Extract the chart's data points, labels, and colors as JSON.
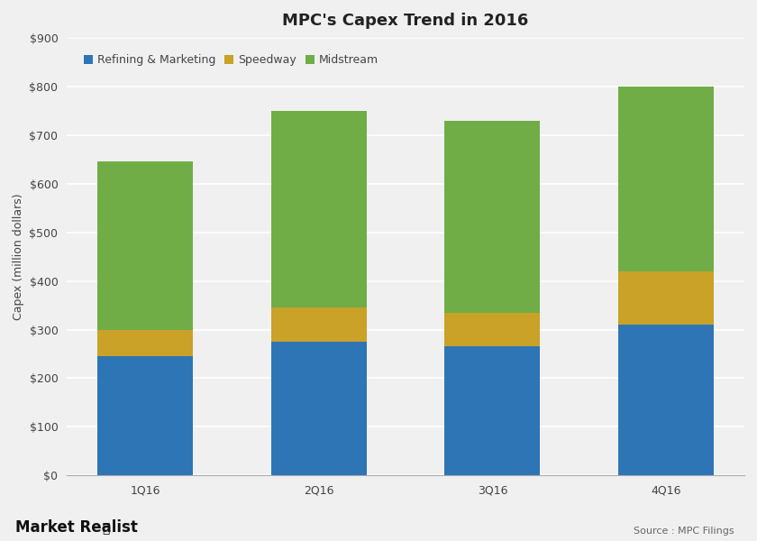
{
  "title": "MPC's Capex Trend in 2016",
  "ylabel": "Capex (million dollars)",
  "source_text": "Source : MPC Filings",
  "watermark": "Market Realist",
  "categories": [
    "1Q16",
    "2Q16",
    "3Q16",
    "4Q16"
  ],
  "series": [
    {
      "name": "Refining & Marketing",
      "values": [
        245,
        275,
        265,
        310
      ],
      "color": "#2e75b6"
    },
    {
      "name": "Speedway",
      "values": [
        55,
        70,
        70,
        110
      ],
      "color": "#c9a227"
    },
    {
      "name": "Midstream",
      "values": [
        345,
        405,
        395,
        380
      ],
      "color": "#70ad47"
    }
  ],
  "ylim": [
    0,
    900
  ],
  "yticks": [
    0,
    100,
    200,
    300,
    400,
    500,
    600,
    700,
    800,
    900
  ],
  "background_color": "#f0f0f0",
  "plot_bg_color": "#f0f0f0",
  "grid_color": "#ffffff",
  "title_fontsize": 13,
  "legend_fontsize": 9,
  "tick_fontsize": 9,
  "bar_width": 0.55
}
